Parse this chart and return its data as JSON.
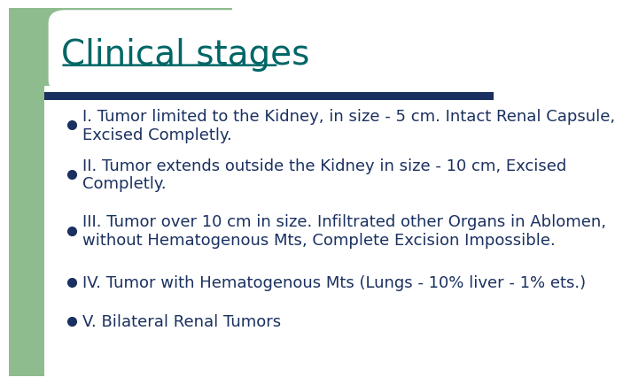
{
  "title": "Clinical stages",
  "title_color": "#006666",
  "title_fontsize": 28,
  "background_color": "#ffffff",
  "left_bar_color": "#8fbc8f",
  "top_bar_color": "#8fbc8f",
  "divider_color": "#1a3060",
  "text_color": "#1a3060",
  "text_fontsize": 13.0,
  "bullet_markersize": 7,
  "bullets": [
    {
      "line1": "I. Tumor limited to the Kidney, in size - 5 cm. Intact Renal Capsule,",
      "line2": "Excised Completly."
    },
    {
      "line1": "II. Tumor extends outside the Kidney in size - 10 cm, Excised",
      "line2": "Completly."
    },
    {
      "line1": "III. Tumor over 10 cm in size. Infiltrated other Organs in Ablomen,",
      "line2": "without Hematogenous Mts, Complete Excision Impossible."
    },
    {
      "line1": "IV. Tumor with Hematogenous Mts (Lungs - 10% liver - 1% ets.)",
      "line2": null
    },
    {
      "line1": "V. Bilateral Renal Tumors",
      "line2": null
    }
  ]
}
